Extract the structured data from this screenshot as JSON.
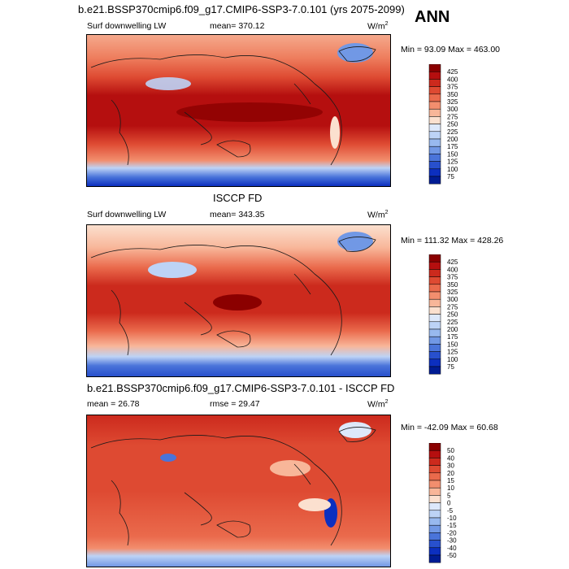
{
  "page_title": "b.e21.BSSP370cmip6.f09_g17.CMIP6-SSP3-7.0.101 (yrs 2075-2099)",
  "season": "ANN",
  "panels": [
    {
      "id": "model",
      "dataset_label": "",
      "left_label": "Surf downwelling LW",
      "center_label": "mean= 370.12",
      "units": "W/m",
      "units_exp": "2",
      "minmax": "Min =  93.09 Max = 463.00",
      "levels": [
        "425",
        "400",
        "375",
        "350",
        "325",
        "300",
        "275",
        "250",
        "225",
        "200",
        "175",
        "150",
        "125",
        "100",
        "75"
      ],
      "colors": [
        "#8b0000",
        "#b50f0f",
        "#cc2a1d",
        "#de4a32",
        "#ea6a4c",
        "#f28e6e",
        "#f8b699",
        "#fbe0cf",
        "#dde8fb",
        "#bdd3f6",
        "#98b9ef",
        "#7198e5",
        "#4a74da",
        "#2850cd",
        "#0c2fbf",
        "#001c93"
      ]
    },
    {
      "id": "obs",
      "dataset_label": "ISCCP FD",
      "left_label": "Surf downwelling LW",
      "center_label": "mean= 343.35",
      "units": "W/m",
      "units_exp": "2",
      "minmax": "Min = 111.32 Max = 428.26",
      "levels": [
        "425",
        "400",
        "375",
        "350",
        "325",
        "300",
        "275",
        "250",
        "225",
        "200",
        "175",
        "150",
        "125",
        "100",
        "75"
      ],
      "colors": [
        "#8b0000",
        "#b50f0f",
        "#cc2a1d",
        "#de4a32",
        "#ea6a4c",
        "#f28e6e",
        "#f8b699",
        "#fbe0cf",
        "#dde8fb",
        "#bdd3f6",
        "#98b9ef",
        "#7198e5",
        "#4a74da",
        "#2850cd",
        "#0c2fbf",
        "#001c93"
      ]
    },
    {
      "id": "diff",
      "dataset_label": "b.e21.BSSP370cmip6.f09_g17.CMIP6-SSP3-7.0.101 - ISCCP FD",
      "left_label": "mean =  26.78",
      "center_label": "rmse =  29.47",
      "units": "W/m",
      "units_exp": "2",
      "minmax": "Min = -42.09 Max =  60.68",
      "levels": [
        "50",
        "40",
        "30",
        "20",
        "15",
        "10",
        "5",
        "0",
        "-5",
        "-10",
        "-15",
        "-20",
        "-30",
        "-40",
        "-50"
      ],
      "colors": [
        "#8b0000",
        "#b50f0f",
        "#cc2a1d",
        "#de4a32",
        "#ea6a4c",
        "#f28e6e",
        "#f8b699",
        "#fbe0cf",
        "#dde8fb",
        "#bdd3f6",
        "#98b9ef",
        "#7198e5",
        "#4a74da",
        "#2850cd",
        "#0c2fbf",
        "#001c93"
      ]
    }
  ]
}
